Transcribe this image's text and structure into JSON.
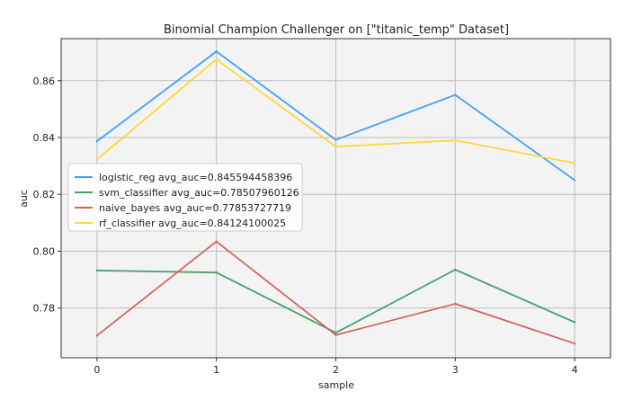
{
  "chart_data": {
    "type": "line",
    "title": "Binomial Champion Challenger on [\"titanic_temp\" Dataset]",
    "xlabel": "sample",
    "ylabel": "auc",
    "x": [
      0,
      1,
      2,
      3,
      4
    ],
    "xlim": [
      -0.3,
      4.3
    ],
    "ylim": [
      0.7625,
      0.8748
    ],
    "xticks": [
      0,
      1,
      2,
      3,
      4
    ],
    "yticks": [
      0.78,
      0.8,
      0.82,
      0.84,
      0.86
    ],
    "ytick_labels": [
      "0.78",
      "0.80",
      "0.82",
      "0.84",
      "0.86"
    ],
    "grid": true,
    "plot_background": "#f3f3f3",
    "legend_position": "center-left",
    "series": [
      {
        "name": "logistic_reg avg_auc=0.845594458396",
        "color": "#3fa2f7",
        "values": [
          0.8387,
          0.8703,
          0.8392,
          0.855,
          0.825
        ]
      },
      {
        "name": "svm_classifier avg_auc=0.78507960126",
        "color": "#4a9e6b",
        "values": [
          0.7932,
          0.7925,
          0.7713,
          0.7935,
          0.775
        ]
      },
      {
        "name": "naive_bayes avg_auc=0.77853727719",
        "color": "#d0665f",
        "values": [
          0.7703,
          0.8034,
          0.7705,
          0.7815,
          0.7675
        ]
      },
      {
        "name": "rf_classifier avg_auc=0.84124100025",
        "color": "#fdd835",
        "values": [
          0.8323,
          0.8675,
          0.8368,
          0.839,
          0.831
        ]
      }
    ]
  }
}
